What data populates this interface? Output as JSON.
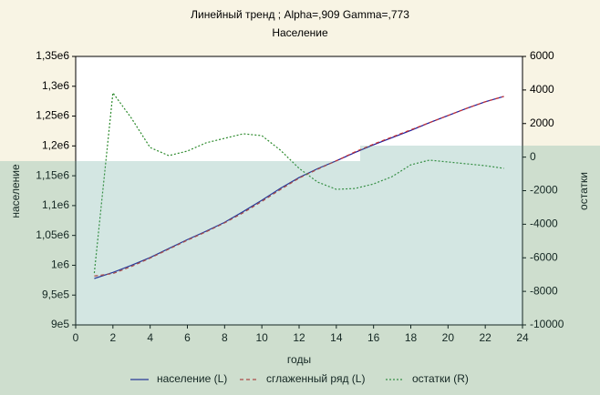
{
  "chart_data": {
    "type": "line",
    "title": "Линейный тренд ; Alpha=,909 Gamma=,773",
    "subtitle": "Население",
    "x_label": "годы",
    "y_label": "население",
    "y2_label": "остатки",
    "x": [
      1,
      2,
      3,
      4,
      5,
      6,
      7,
      8,
      9,
      10,
      11,
      12,
      13,
      14,
      15,
      16,
      17,
      18,
      19,
      20,
      21,
      22,
      23
    ],
    "series": [
      {
        "name": "население (L)",
        "color": "#1a1a9c",
        "line_style": "solid",
        "values": [
          977800,
          988000,
          1000000,
          1013000,
          1028000,
          1043000,
          1057000,
          1072000,
          1090000,
          1109000,
          1129000,
          1147000,
          1162000,
          1175000,
          1189000,
          1202000,
          1214000,
          1226000,
          1239000,
          1251000,
          1263000,
          1274000,
          1283000
        ]
      },
      {
        "name": "сглаженный ряд (L)",
        "color": "#c83232",
        "line_style": "dashed",
        "values": [
          982000,
          986000,
          998000,
          1012000,
          1027000,
          1042000,
          1056000,
          1071000,
          1088000,
          1107000,
          1127000,
          1146000,
          1161000,
          1175000,
          1190000,
          1203000,
          1215000,
          1227000,
          1239000,
          1251000,
          1263000,
          1274000,
          1283000
        ]
      },
      {
        "name": "остатки (R)",
        "color": "#2e8b2e",
        "line_style": "dotted",
        "axis": "y2",
        "values": [
          -6910,
          3830,
          2310,
          570,
          90,
          360,
          850,
          1120,
          1390,
          1280,
          410,
          -670,
          -1490,
          -1920,
          -1870,
          -1600,
          -1160,
          -460,
          -180,
          -290,
          -400,
          -510,
          -670
        ]
      }
    ],
    "xlim": [
      0,
      24
    ],
    "xticks": [
      0,
      2,
      4,
      6,
      8,
      10,
      12,
      14,
      16,
      18,
      20,
      22,
      24
    ],
    "ylim": [
      900000,
      1350000
    ],
    "yticks": [
      {
        "value": 900000,
        "label": "9e5"
      },
      {
        "value": 950000,
        "label": "9,5e5"
      },
      {
        "value": 1000000,
        "label": "1e6"
      },
      {
        "value": 1050000,
        "label": "1,05e6"
      },
      {
        "value": 1100000,
        "label": "1,1e6"
      },
      {
        "value": 1150000,
        "label": "1,15e6"
      },
      {
        "value": 1200000,
        "label": "1,2e6"
      },
      {
        "value": 1250000,
        "label": "1,25e6"
      },
      {
        "value": 1300000,
        "label": "1,3e6"
      },
      {
        "value": 1350000,
        "label": "1,35e6"
      }
    ],
    "y2lim": [
      -10000,
      6000
    ],
    "y2ticks": [
      -10000,
      -8000,
      -6000,
      -4000,
      -2000,
      0,
      2000,
      4000,
      6000
    ],
    "grid": false,
    "legend": "bottom"
  }
}
